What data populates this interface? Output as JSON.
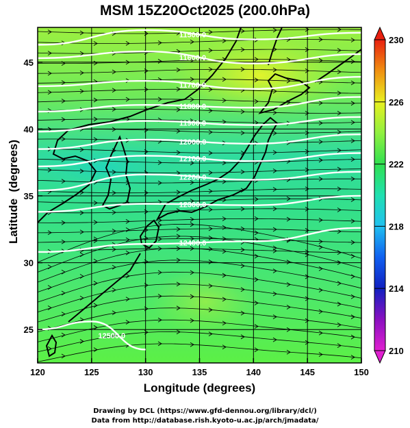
{
  "chart_data": {
    "type": "heatmap",
    "title": "MSM 15Z20Oct2025 (200.0hPa)",
    "xlabel": "Longitude (degrees)",
    "ylabel": "Latitude  (degrees)",
    "xlim": [
      120,
      150
    ],
    "ylim": [
      22.5,
      47.6
    ],
    "x_ticks": [
      120,
      125,
      130,
      135,
      140,
      145,
      150
    ],
    "y_ticks": [
      25,
      30,
      35,
      40,
      45
    ],
    "grid": true,
    "variable": "temperature",
    "colorbar": {
      "min": 210,
      "max": 230,
      "ticks": [
        210,
        214,
        218,
        222,
        226,
        230
      ],
      "extend": "both",
      "placement": "right"
    },
    "contours": [
      {
        "label": "11500.0",
        "lat_at_lon": [
          [
            120,
            46.3
          ],
          [
            130,
            47.4
          ],
          [
            140,
            46.7
          ],
          [
            150,
            47.2
          ]
        ]
      },
      {
        "label": "11600.0",
        "lat_at_lon": [
          [
            120,
            45.3
          ],
          [
            130,
            45.8
          ],
          [
            140,
            44.9
          ],
          [
            150,
            45.6
          ]
        ]
      },
      {
        "label": "11700.0",
        "lat_at_lon": [
          [
            120,
            43.2
          ],
          [
            130,
            43.6
          ],
          [
            140,
            43.0
          ],
          [
            150,
            43.9
          ]
        ]
      },
      {
        "label": "11800.0",
        "lat_at_lon": [
          [
            120,
            41.3
          ],
          [
            130,
            41.8
          ],
          [
            140,
            41.6
          ],
          [
            150,
            42.4
          ]
        ]
      },
      {
        "label": "11900.0",
        "lat_at_lon": [
          [
            120,
            39.8
          ],
          [
            130,
            40.6
          ],
          [
            140,
            40.3
          ],
          [
            150,
            40.9
          ]
        ]
      },
      {
        "label": "12000.0",
        "lat_at_lon": [
          [
            120,
            38.5
          ],
          [
            130,
            39.2
          ],
          [
            140,
            38.9
          ],
          [
            150,
            39.6
          ]
        ]
      },
      {
        "label": "12100.0",
        "lat_at_lon": [
          [
            120,
            37.2
          ],
          [
            130,
            38.0
          ],
          [
            140,
            37.6
          ],
          [
            150,
            38.2
          ]
        ]
      },
      {
        "label": "12200.0",
        "lat_at_lon": [
          [
            120,
            35.4
          ],
          [
            130,
            36.6
          ],
          [
            140,
            36.2
          ],
          [
            150,
            36.8
          ]
        ]
      },
      {
        "label": "12300.0",
        "lat_at_lon": [
          [
            120,
            33.8
          ],
          [
            130,
            34.4
          ],
          [
            140,
            34.3
          ],
          [
            150,
            35.0
          ]
        ]
      },
      {
        "label": "12400.0",
        "lat_at_lon": [
          [
            120,
            30.8
          ],
          [
            130,
            31.4
          ],
          [
            140,
            31.6
          ],
          [
            150,
            32.6
          ]
        ]
      },
      {
        "label": "12500.0",
        "lat_at_lon": [
          [
            120,
            25.0
          ],
          [
            125,
            25.6
          ],
          [
            130,
            23.5
          ]
        ]
      }
    ],
    "annotations": [
      "Drawing by DCL (https://www.gfd-dennou.org/library/dcl/)",
      "Data from http://database.rish.kyoto-u.ac.jp/arch/jmadata/"
    ]
  },
  "colors": {
    "frame": "#000000",
    "contour": "#ffffff",
    "streamline": "#000000",
    "coast": "#000000"
  }
}
